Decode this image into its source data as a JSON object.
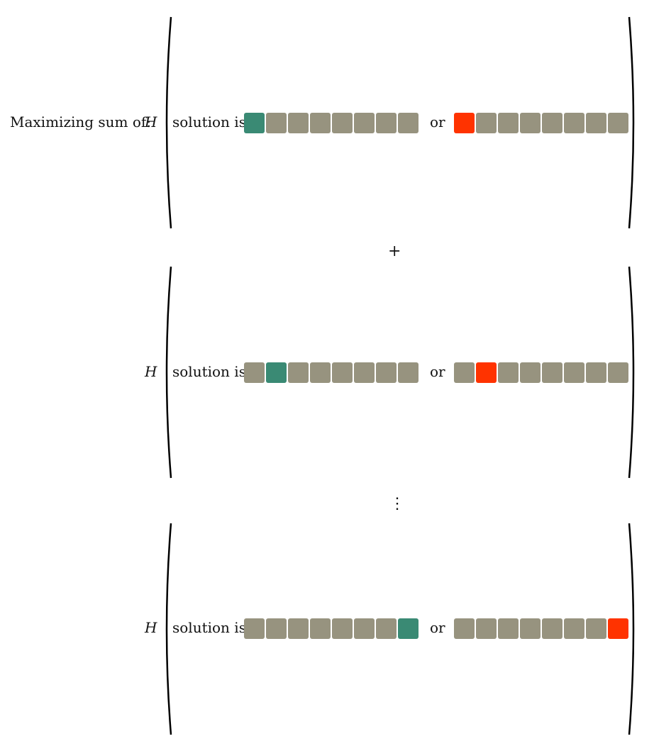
{
  "intro_label": "Maximizing sum of:",
  "variable": "H",
  "solution_label": "solution is",
  "or_label": "or",
  "plus_sign": "+",
  "vdots": "⋮",
  "colors": {
    "neutral": "#97937f",
    "correct": "#3a8a74",
    "wrong": "#ff3300"
  },
  "terms": [
    {
      "highlight_index": 0,
      "squares": 8
    },
    {
      "highlight_index": 1,
      "squares": 8
    },
    {
      "highlight_index": 7,
      "squares": 8
    }
  ]
}
